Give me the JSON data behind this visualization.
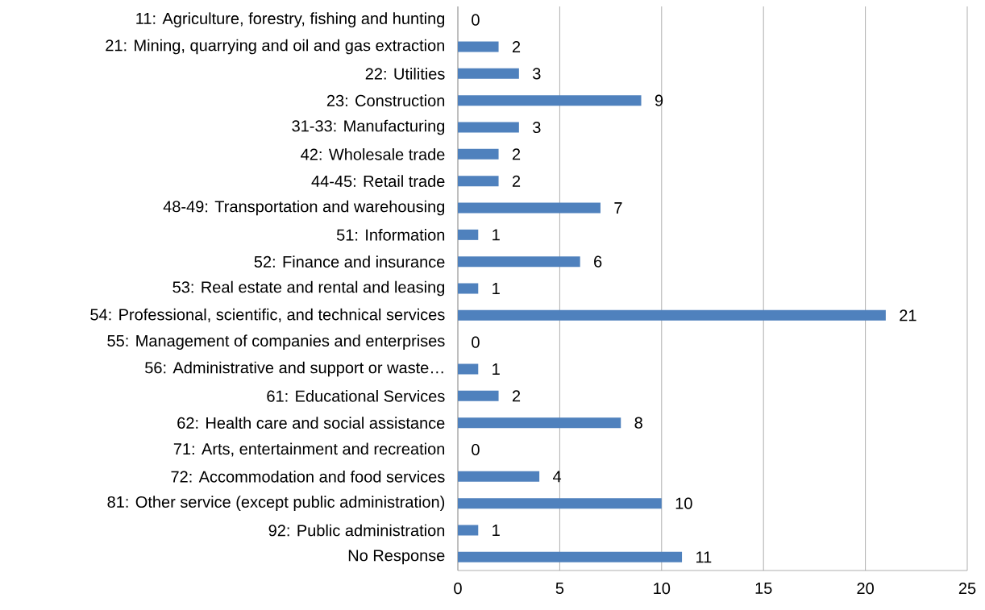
{
  "chart_data": {
    "type": "bar",
    "orientation": "horizontal",
    "color": "#4f81bd",
    "grid": "x",
    "data_labels": true,
    "categories": [
      "11: Agriculture, forestry, fishing and hunting",
      "21: Mining, quarrying and oil and gas extraction",
      "22: Utilities",
      "23: Construction",
      "31-33: Manufacturing",
      "42: Wholesale trade",
      "44-45: Retail trade",
      "48-49: Transportation and warehousing",
      "51: Information",
      "52: Finance and insurance",
      "53: Real estate and rental and leasing",
      "54: Professional, scientific, and technical services",
      "55: Management of companies and enterprises",
      "56: Administrative and support or waste…",
      "61: Educational Services",
      "62: Health care and social assistance",
      "71: Arts, entertainment and recreation",
      "72: Accommodation and food services",
      "81: Other service (except public administration)",
      "92: Public administration",
      "No Response"
    ],
    "values": [
      0,
      2,
      3,
      9,
      3,
      2,
      2,
      7,
      1,
      6,
      1,
      21,
      0,
      1,
      2,
      8,
      0,
      4,
      10,
      1,
      11
    ],
    "xlim": [
      0,
      25
    ],
    "xticks": [
      0,
      5,
      10,
      15,
      20,
      25
    ]
  }
}
